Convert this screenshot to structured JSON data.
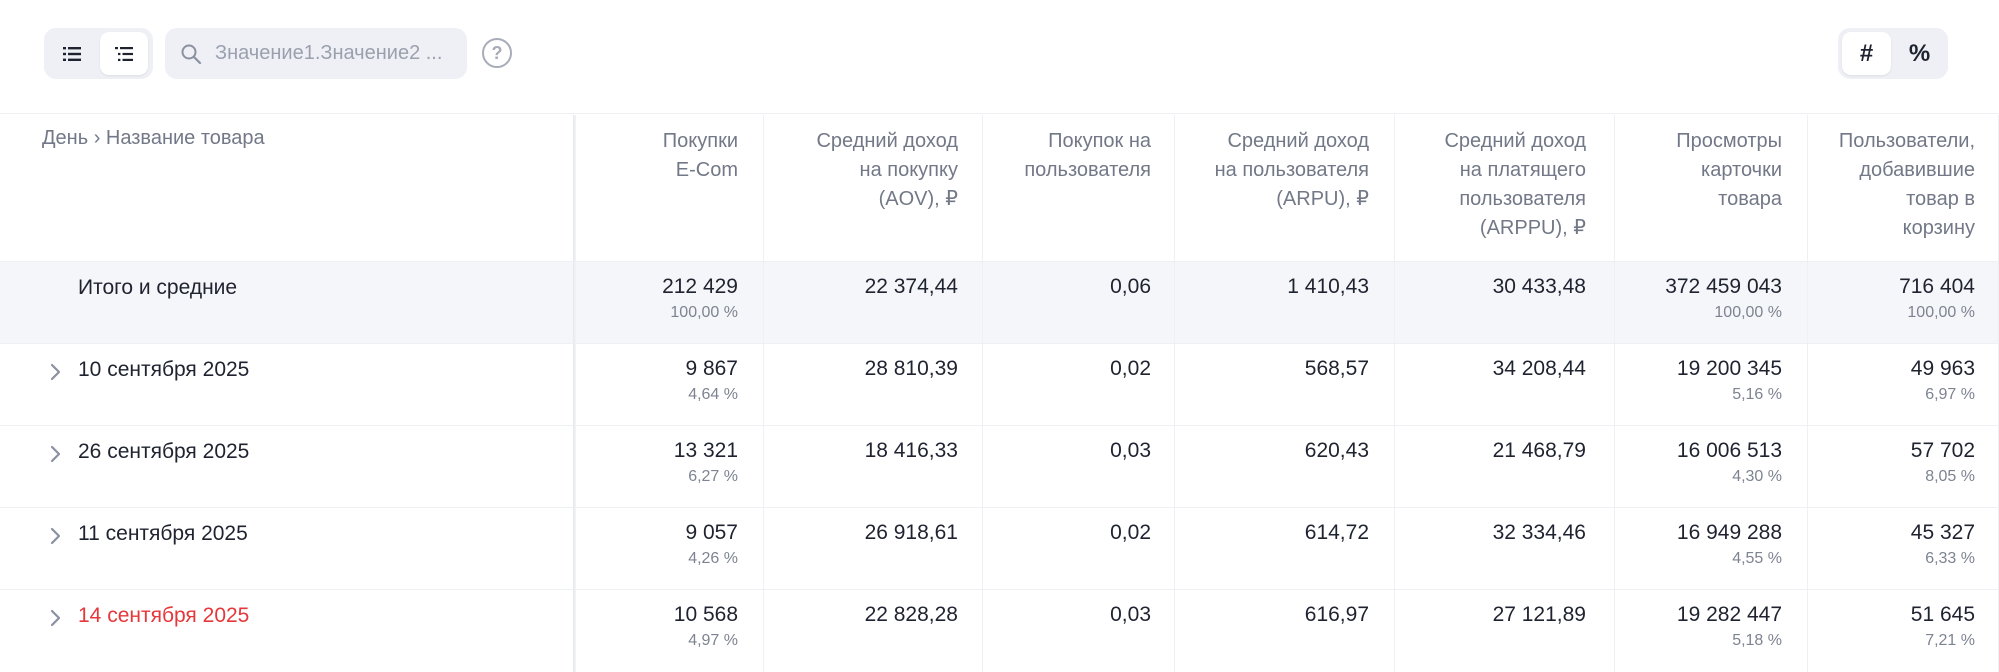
{
  "search": {
    "placeholder": "Значение1.Значение2 ..."
  },
  "help": {
    "label": "?"
  },
  "mode_toggle": {
    "count_label": "#",
    "percent_label": "%"
  },
  "header": {
    "dimension": "День › Название товара",
    "columns": [
      [
        "Покупки",
        "E-Com"
      ],
      [
        "Средний доход",
        "на покупку",
        "(AOV), ₽"
      ],
      [
        "Покупок на",
        "пользователя"
      ],
      [
        "Средний доход",
        "на пользователя",
        "(ARPU), ₽"
      ],
      [
        "Средний доход",
        "на платящего",
        "пользователя",
        "(ARPPU), ₽"
      ],
      [
        "Просмотры",
        "карточки",
        "товара"
      ],
      [
        "Пользователи,",
        "добавившие",
        "товар в",
        "корзину"
      ]
    ]
  },
  "rows": [
    {
      "label": "Итого и средние",
      "total": true,
      "cells": [
        {
          "v": "212 429",
          "p": "100,00 %"
        },
        {
          "v": "22 374,44",
          "p": ""
        },
        {
          "v": "0,06",
          "p": ""
        },
        {
          "v": "1 410,43",
          "p": ""
        },
        {
          "v": "30 433,48",
          "p": ""
        },
        {
          "v": "372 459 043",
          "p": "100,00 %"
        },
        {
          "v": "716 404",
          "p": "100,00 %"
        }
      ]
    },
    {
      "label": "10 сентября 2025",
      "cells": [
        {
          "v": "9 867",
          "p": "4,64 %"
        },
        {
          "v": "28 810,39",
          "p": ""
        },
        {
          "v": "0,02",
          "p": ""
        },
        {
          "v": "568,57",
          "p": ""
        },
        {
          "v": "34 208,44",
          "p": ""
        },
        {
          "v": "19 200 345",
          "p": "5,16 %"
        },
        {
          "v": "49 963",
          "p": "6,97 %"
        }
      ]
    },
    {
      "label": "26 сентября 2025",
      "cells": [
        {
          "v": "13 321",
          "p": "6,27 %"
        },
        {
          "v": "18 416,33",
          "p": ""
        },
        {
          "v": "0,03",
          "p": ""
        },
        {
          "v": "620,43",
          "p": ""
        },
        {
          "v": "21 468,79",
          "p": ""
        },
        {
          "v": "16 006 513",
          "p": "4,30 %"
        },
        {
          "v": "57 702",
          "p": "8,05 %"
        }
      ]
    },
    {
      "label": "11 сентября 2025",
      "cells": [
        {
          "v": "9 057",
          "p": "4,26 %"
        },
        {
          "v": "26 918,61",
          "p": ""
        },
        {
          "v": "0,02",
          "p": ""
        },
        {
          "v": "614,72",
          "p": ""
        },
        {
          "v": "32 334,46",
          "p": ""
        },
        {
          "v": "16 949 288",
          "p": "4,55 %"
        },
        {
          "v": "45 327",
          "p": "6,33 %"
        }
      ]
    },
    {
      "label": "14 сентября 2025",
      "highlight": true,
      "cells": [
        {
          "v": "10 568",
          "p": "4,97 %"
        },
        {
          "v": "22 828,28",
          "p": ""
        },
        {
          "v": "0,03",
          "p": ""
        },
        {
          "v": "616,97",
          "p": ""
        },
        {
          "v": "27 121,89",
          "p": ""
        },
        {
          "v": "19 282 447",
          "p": "5,18 %"
        },
        {
          "v": "51 645",
          "p": "7,21 %"
        }
      ]
    }
  ],
  "colors": {
    "highlight": "#e5383b",
    "muted": "#727887",
    "toggle_bg": "#eef0f5"
  },
  "icons": {
    "list_flat": "list-icon",
    "list_tree": "tree-list-icon",
    "search": "search-icon",
    "help": "help-circle-icon",
    "expand": "chevron-right-icon"
  }
}
